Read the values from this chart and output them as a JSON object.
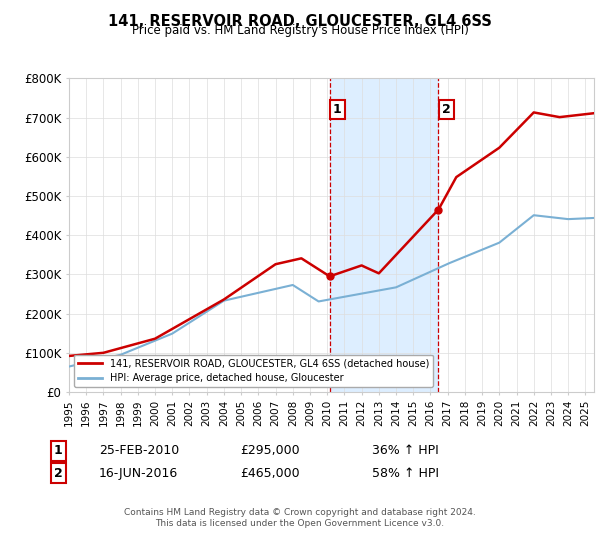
{
  "title": "141, RESERVOIR ROAD, GLOUCESTER, GL4 6SS",
  "subtitle": "Price paid vs. HM Land Registry's House Price Index (HPI)",
  "sale1_date": "25-FEB-2010",
  "sale1_price": 295000,
  "sale1_hpi": "36% ↑ HPI",
  "sale1_label": "1",
  "sale2_date": "16-JUN-2016",
  "sale2_price": 465000,
  "sale2_hpi": "58% ↑ HPI",
  "sale2_label": "2",
  "legend_line1": "141, RESERVOIR ROAD, GLOUCESTER, GL4 6SS (detached house)",
  "legend_line2": "HPI: Average price, detached house, Gloucester",
  "footer": "Contains HM Land Registry data © Crown copyright and database right 2024.\nThis data is licensed under the Open Government Licence v3.0.",
  "line_color_red": "#cc0000",
  "line_color_blue": "#7ab0d4",
  "shade_color": "#ddeeff",
  "ylim_min": 0,
  "ylim_max": 800000,
  "sale1_year_dec": 2010.14,
  "sale2_year_dec": 2016.46,
  "xmin": 1995,
  "xmax": 2025.5
}
